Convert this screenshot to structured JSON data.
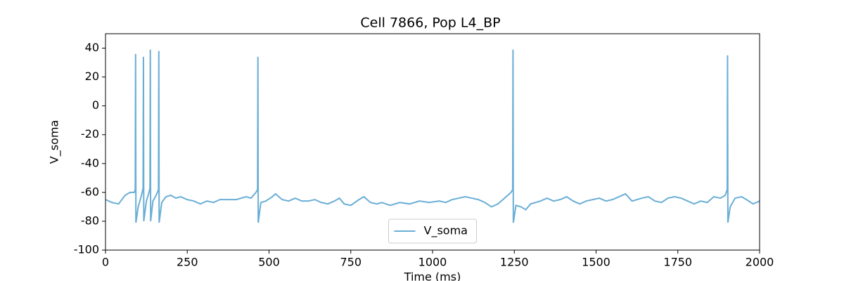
{
  "chart_data": {
    "type": "line",
    "title": "Cell 7866, Pop L4_BP",
    "x_label": "Time (ms)",
    "y_label": "V_soma",
    "xlim": [
      0,
      2000
    ],
    "ylim": [
      -100,
      50
    ],
    "xticks": [
      0,
      250,
      500,
      750,
      1000,
      1250,
      1500,
      1750,
      2000
    ],
    "yticks": [
      -100,
      -80,
      -60,
      -40,
      -20,
      0,
      20,
      40
    ],
    "grid": false,
    "legend": "lower center",
    "x": [
      0,
      20,
      40,
      60,
      75,
      88,
      91,
      92,
      93,
      100,
      110,
      115,
      116,
      117,
      125,
      133,
      136,
      137,
      138,
      145,
      155,
      162,
      163,
      164,
      172,
      185,
      200,
      215,
      230,
      250,
      270,
      290,
      310,
      330,
      350,
      380,
      400,
      430,
      445,
      460,
      465,
      466,
      467,
      475,
      490,
      510,
      520,
      540,
      560,
      580,
      600,
      620,
      640,
      660,
      680,
      700,
      715,
      730,
      750,
      775,
      790,
      810,
      830,
      845,
      870,
      900,
      930,
      960,
      990,
      1020,
      1040,
      1060,
      1080,
      1100,
      1120,
      1140,
      1160,
      1180,
      1200,
      1220,
      1240,
      1245,
      1246,
      1247,
      1255,
      1270,
      1285,
      1300,
      1330,
      1350,
      1370,
      1390,
      1410,
      1430,
      1450,
      1470,
      1490,
      1510,
      1530,
      1550,
      1570,
      1590,
      1610,
      1640,
      1660,
      1680,
      1700,
      1720,
      1740,
      1760,
      1780,
      1800,
      1820,
      1840,
      1860,
      1880,
      1895,
      1901,
      1902,
      1903,
      1910,
      1925,
      1945,
      1960,
      1980,
      2000
    ],
    "series": [
      {
        "name": "V_soma",
        "color": "#6aaed6",
        "values": [
          -65,
          -67,
          -68,
          -62,
          -60,
          -60,
          -58,
          36,
          -81,
          -70,
          -62,
          -57,
          34,
          -80,
          -66,
          -60,
          -57,
          39,
          -80,
          -66,
          -62,
          -58,
          38,
          -81,
          -67,
          -63,
          -62,
          -64,
          -63,
          -65,
          -66,
          -68,
          -66,
          -67,
          -65,
          -65,
          -65,
          -63,
          -64,
          -60,
          -58,
          34,
          -81,
          -67,
          -66,
          -63,
          -61,
          -65,
          -66,
          -64,
          -66,
          -66,
          -65,
          -67,
          -68,
          -66,
          -64,
          -68,
          -69,
          -65,
          -63,
          -67,
          -68,
          -67,
          -69,
          -67,
          -68,
          -66,
          -67,
          -66,
          -67,
          -65,
          -64,
          -63,
          -64,
          -65,
          -67,
          -70,
          -68,
          -64,
          -60,
          -58,
          39,
          -81,
          -69,
          -70,
          -72,
          -68,
          -66,
          -64,
          -66,
          -65,
          -63,
          -66,
          -68,
          -66,
          -65,
          -64,
          -66,
          -65,
          -63,
          -61,
          -66,
          -64,
          -63,
          -66,
          -67,
          -64,
          -63,
          -64,
          -66,
          -68,
          -66,
          -67,
          -63,
          -64,
          -62,
          -58,
          35,
          -81,
          -70,
          -64,
          -63,
          -65,
          -68,
          -66
        ]
      }
    ]
  }
}
